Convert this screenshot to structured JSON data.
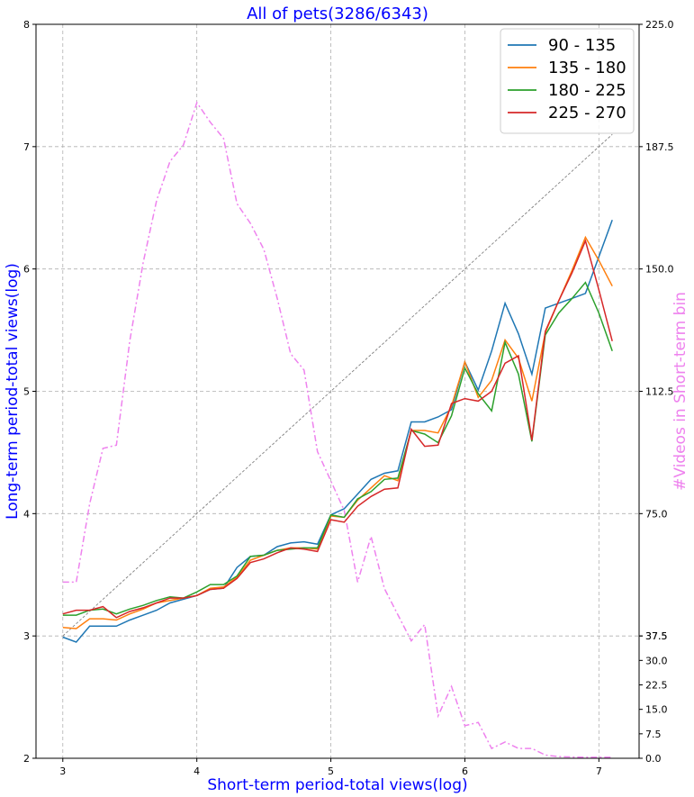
{
  "chart_data": {
    "type": "line",
    "title": "All of pets(3286/6343)",
    "xlabel": "Short-term period-total views(log)",
    "ylabel": "Long-term period-total views(log)",
    "y2label": "#Videos in Short-term bin",
    "xlim": [
      2.8,
      7.3
    ],
    "ylim": [
      2,
      8
    ],
    "y2lim": [
      0,
      225
    ],
    "xticks": [
      "3",
      "4",
      "5",
      "6",
      "7"
    ],
    "yticks": [
      "2",
      "3",
      "4",
      "5",
      "6",
      "7",
      "8"
    ],
    "y2ticks": [
      "0.0",
      "7.5",
      "15.0",
      "22.5",
      "30.0",
      "37.5",
      "37.5",
      "75.0",
      "112.5",
      "150.0",
      "187.5",
      "225.0"
    ],
    "y2tick_values": [
      0,
      7.5,
      15,
      22.5,
      30,
      37.5,
      37.5,
      75,
      112.5,
      150,
      187.5,
      225
    ],
    "grid": true,
    "legend_position": "top-right",
    "x": [
      3.0,
      3.1,
      3.2,
      3.3,
      3.4,
      3.5,
      3.6,
      3.7,
      3.8,
      3.9,
      4.0,
      4.1,
      4.2,
      4.3,
      4.4,
      4.5,
      4.6,
      4.7,
      4.8,
      4.9,
      5.0,
      5.1,
      5.2,
      5.3,
      5.4,
      5.5,
      5.6,
      5.7,
      5.8,
      5.9,
      6.0,
      6.1,
      6.2,
      6.3,
      6.4,
      6.5,
      6.6,
      6.7,
      6.8,
      6.9,
      7.0,
      7.1
    ],
    "series": [
      {
        "name": "90 - 135",
        "color": "#1f77b4",
        "values": [
          2.99,
          2.95,
          3.08,
          3.08,
          3.08,
          3.13,
          3.17,
          3.21,
          3.27,
          3.3,
          3.33,
          3.38,
          3.39,
          3.56,
          3.65,
          3.66,
          3.73,
          3.76,
          3.77,
          3.75,
          3.99,
          4.04,
          4.16,
          4.28,
          4.33,
          4.35,
          4.75,
          4.75,
          4.79,
          4.85,
          5.24,
          5.01,
          5.33,
          5.72,
          5.47,
          5.14,
          5.68,
          5.72,
          5.76,
          5.8,
          6.1,
          6.4
        ]
      },
      {
        "name": "135 - 180",
        "color": "#ff7f0e",
        "values": [
          3.07,
          3.06,
          3.14,
          3.14,
          3.13,
          3.18,
          3.22,
          3.27,
          3.29,
          3.31,
          3.33,
          3.39,
          3.4,
          3.48,
          3.62,
          3.66,
          3.7,
          3.72,
          3.72,
          3.71,
          3.98,
          3.97,
          4.11,
          4.21,
          4.31,
          4.27,
          4.68,
          4.68,
          4.66,
          4.88,
          5.24,
          4.95,
          5.09,
          5.42,
          5.27,
          4.92,
          5.48,
          5.74,
          5.99,
          6.26,
          6.07,
          5.86
        ]
      },
      {
        "name": "180 - 225",
        "color": "#2ca02c",
        "values": [
          3.17,
          3.17,
          3.21,
          3.22,
          3.18,
          3.22,
          3.25,
          3.29,
          3.32,
          3.31,
          3.36,
          3.42,
          3.42,
          3.49,
          3.65,
          3.66,
          3.7,
          3.71,
          3.72,
          3.72,
          3.99,
          3.97,
          4.12,
          4.18,
          4.28,
          4.29,
          4.68,
          4.65,
          4.58,
          4.8,
          5.19,
          4.98,
          4.84,
          5.4,
          5.14,
          4.59,
          5.46,
          5.64,
          5.76,
          5.89,
          5.64,
          5.33
        ]
      },
      {
        "name": "225 - 270",
        "color": "#d62728",
        "values": [
          3.18,
          3.21,
          3.21,
          3.24,
          3.15,
          3.2,
          3.23,
          3.27,
          3.31,
          3.31,
          3.33,
          3.38,
          3.39,
          3.47,
          3.6,
          3.63,
          3.68,
          3.72,
          3.71,
          3.69,
          3.95,
          3.93,
          4.06,
          4.14,
          4.2,
          4.21,
          4.69,
          4.55,
          4.56,
          4.9,
          4.94,
          4.92,
          5.0,
          5.23,
          5.29,
          4.6,
          5.49,
          5.74,
          5.97,
          6.23,
          5.83,
          5.41
        ]
      }
    ],
    "count_series": {
      "color": "#ee82ee",
      "axis": "right",
      "values": [
        54,
        54,
        78,
        95,
        96,
        128,
        152,
        171,
        183,
        188,
        201,
        195,
        190,
        170,
        164,
        156,
        141,
        124,
        119,
        94,
        85,
        76,
        54,
        68,
        52,
        44,
        36,
        41,
        13,
        22,
        10,
        11,
        3,
        5,
        3,
        3,
        1,
        0.5,
        0.4,
        0.3,
        0.3,
        0.3
      ]
    },
    "reference_line": {
      "from": [
        3.0,
        3.0
      ],
      "to": [
        7.1,
        7.1
      ],
      "color": "#808080",
      "style": "dashed"
    }
  }
}
